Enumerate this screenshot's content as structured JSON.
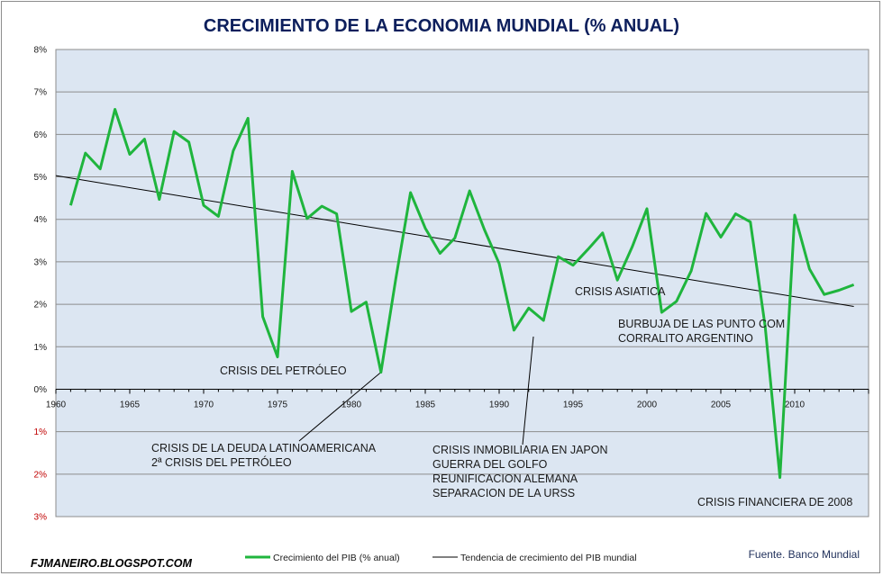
{
  "chart_data": {
    "type": "line",
    "title": "CRECIMIENTO DE LA ECONOMIA MUNDIAL (% ANUAL)",
    "ylim": [
      -3,
      8
    ],
    "xlim": [
      1960,
      2015
    ],
    "y_ticks": [
      {
        "value": 8,
        "label": "8%"
      },
      {
        "value": 7,
        "label": "7%"
      },
      {
        "value": 6,
        "label": "6%"
      },
      {
        "value": 5,
        "label": "5%"
      },
      {
        "value": 4,
        "label": "4%"
      },
      {
        "value": 3,
        "label": "3%"
      },
      {
        "value": 2,
        "label": "2%"
      },
      {
        "value": 1,
        "label": "1%"
      },
      {
        "value": 0,
        "label": "0%"
      },
      {
        "value": -1,
        "label": "1%"
      },
      {
        "value": -2,
        "label": "2%"
      },
      {
        "value": -3,
        "label": "3%"
      }
    ],
    "x_ticks": [
      1960,
      1965,
      1970,
      1975,
      1980,
      1985,
      1990,
      1995,
      2000,
      2005,
      2010
    ],
    "grid": true,
    "series": [
      {
        "name": "Crecimiento del PIB (% anual)",
        "color": "#1fb53d",
        "x": [
          1961,
          1962,
          1963,
          1964,
          1965,
          1966,
          1967,
          1968,
          1969,
          1970,
          1971,
          1972,
          1973,
          1974,
          1975,
          1976,
          1977,
          1978,
          1979,
          1980,
          1981,
          1982,
          1983,
          1984,
          1985,
          1986,
          1987,
          1988,
          1989,
          1990,
          1991,
          1992,
          1993,
          1994,
          1995,
          1996,
          1997,
          1998,
          1999,
          2000,
          2001,
          2002,
          2003,
          2004,
          2005,
          2006,
          2007,
          2008,
          2009,
          2010,
          2011,
          2012,
          2013,
          2014
        ],
        "values": [
          4.33,
          5.56,
          5.19,
          6.59,
          5.53,
          5.89,
          4.47,
          6.07,
          5.82,
          4.33,
          4.07,
          5.61,
          6.38,
          1.71,
          0.76,
          5.13,
          4.02,
          4.31,
          4.13,
          1.83,
          2.05,
          0.4,
          2.59,
          4.63,
          3.79,
          3.2,
          3.56,
          4.67,
          3.76,
          2.96,
          1.39,
          1.91,
          1.62,
          3.12,
          2.92,
          3.29,
          3.68,
          2.57,
          3.35,
          4.25,
          1.81,
          2.07,
          2.79,
          4.14,
          3.58,
          4.13,
          3.94,
          1.48,
          -2.08,
          4.1,
          2.83,
          2.23,
          2.33,
          2.46
        ]
      },
      {
        "name": "Tendencia de crecimiento del PIB mundial",
        "color": "#000000",
        "x": [
          1960,
          2014
        ],
        "values": [
          5.03,
          1.95
        ]
      }
    ],
    "annotations": [
      {
        "text": "CRISIS DEL PETRÓLEO"
      },
      {
        "text": "CRISIS DE LA DEUDA LATINOAMERICANA"
      },
      {
        "text": "2ª CRISIS DEL PETRÓLEO"
      },
      {
        "text": "CRISIS INMOBILIARIA EN JAPON"
      },
      {
        "text": "GUERRA DEL GOLFO"
      },
      {
        "text": "REUNIFICACION ALEMANA"
      },
      {
        "text": "SEPARACION DE LA URSS"
      },
      {
        "text": "CRISIS ASIATICA"
      },
      {
        "text": "BURBUJA DE LAS PUNTO COM"
      },
      {
        "text": "CORRALITO ARGENTINO"
      },
      {
        "text": "CRISIS FINANCIERA DE 2008"
      }
    ],
    "legend_position": "bottom"
  },
  "footer": {
    "blog": "FJMANEIRO.BLOGSPOT.COM",
    "source": "Fuente. Banco Mundial"
  }
}
